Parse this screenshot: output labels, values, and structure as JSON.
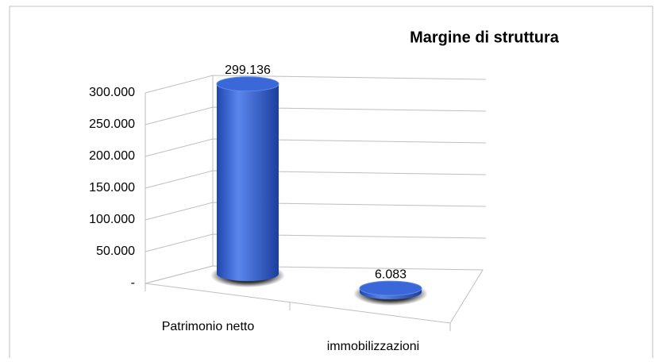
{
  "chart_data": {
    "type": "bar3d",
    "title": "Margine di struttura",
    "categories": [
      "Patrimonio netto",
      "immobilizzazioni"
    ],
    "values": [
      299136,
      6083
    ],
    "value_labels": [
      "299.136",
      "6.083"
    ],
    "color": "#3a68d8",
    "ylim": [
      0,
      300000
    ],
    "yticks": [
      {
        "value": 0,
        "label": "-"
      },
      {
        "value": 50000,
        "label": "50.000"
      },
      {
        "value": 100000,
        "label": "100.000"
      },
      {
        "value": 150000,
        "label": "150.000"
      },
      {
        "value": 200000,
        "label": "200.000"
      },
      {
        "value": 250000,
        "label": "250.000"
      },
      {
        "value": 300000,
        "label": "300.000"
      }
    ],
    "grid": true
  }
}
